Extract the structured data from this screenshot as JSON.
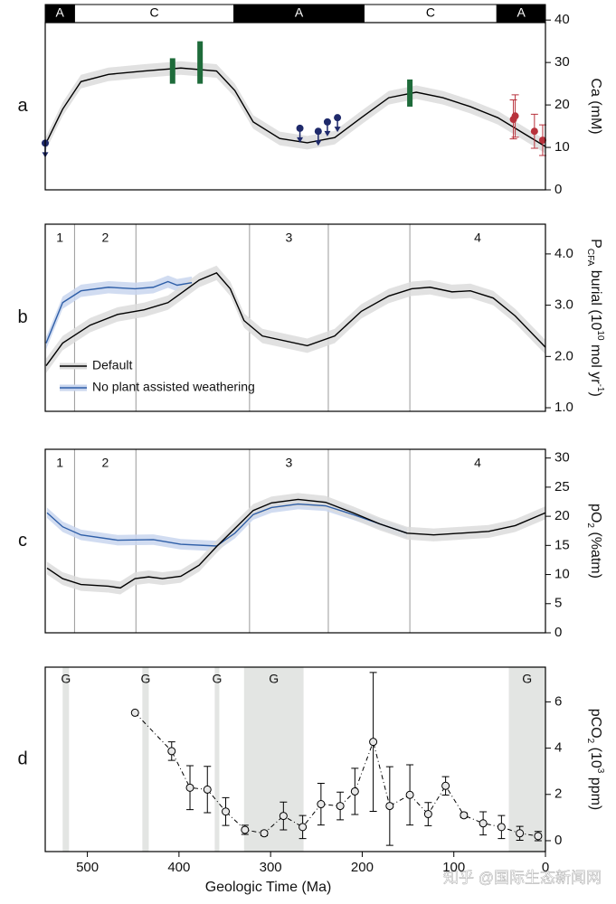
{
  "watermark": "知乎 @国际生态新闻网",
  "chart_data": [
    {
      "type": "line",
      "panel_label": "a",
      "xlim": [
        546,
        0
      ],
      "ylim": [
        0,
        39.4
      ],
      "yticks": [
        0,
        10,
        20,
        30,
        40
      ],
      "y_label": [
        {
          "text": "Ca (mM)"
        }
      ],
      "periods": [
        {
          "label": "A",
          "start": 546,
          "end": 514,
          "color": "#000000"
        },
        {
          "label": "C",
          "start": 514,
          "end": 340,
          "color": "#ffffff"
        },
        {
          "label": "A",
          "start": 340,
          "end": 198,
          "color": "#000000"
        },
        {
          "label": "C",
          "start": 198,
          "end": 53,
          "color": "#ffffff"
        },
        {
          "label": "A",
          "start": 53,
          "end": 0,
          "color": "#000000"
        }
      ],
      "series": [
        {
          "color": "#000000",
          "band_color": "#dcdcdc",
          "uncertainty": 1.6,
          "x": [
            546,
            527,
            507,
            477,
            438,
            398,
            359,
            339,
            319,
            290,
            260,
            230,
            201,
            171,
            141,
            112,
            82,
            52,
            23,
            0
          ],
          "values": [
            10.6,
            19,
            25.5,
            27.2,
            28,
            28.7,
            28,
            23.4,
            16,
            12.1,
            11.1,
            12.3,
            17,
            21.7,
            23,
            21.7,
            19.6,
            17,
            13.2,
            10.2
          ]
        }
      ],
      "ranges": {
        "color": "#1e6b3a",
        "x": [
          407,
          377,
          148
        ],
        "low": [
          25,
          25,
          19.6
        ],
        "high": [
          31,
          35,
          26
        ]
      },
      "upper_limits": {
        "color": "#1f2a6b",
        "x": [
          546,
          268,
          248,
          238,
          227
        ],
        "values": [
          11,
          14.5,
          13.8,
          16,
          17
        ]
      },
      "errpoints": {
        "color": "#b8323c",
        "x": [
          35,
          33,
          12,
          3
        ],
        "values": [
          16.6,
          17.4,
          13.8,
          11.7
        ],
        "errors": [
          4.6,
          5,
          4,
          3.6
        ]
      }
    },
    {
      "type": "line",
      "panel_label": "b",
      "xlim": [
        546,
        0
      ],
      "ylim": [
        0.93,
        4.58
      ],
      "yticks": [
        {
          "value": 1,
          "label": "1.0"
        },
        {
          "value": 2,
          "label": "2.0"
        },
        {
          "value": 3,
          "label": "3.0"
        },
        {
          "value": 4,
          "label": "4.0"
        }
      ],
      "y_label": [
        {
          "text": "P"
        },
        {
          "text": "CFA",
          "shift": "sub"
        },
        {
          "text": " burial (10"
        },
        {
          "text": "10",
          "shift": "super"
        },
        {
          "text": " mol yr"
        },
        {
          "text": "-1",
          "shift": "super"
        },
        {
          "text": ")"
        }
      ],
      "boundaries": [
        514,
        447,
        323,
        237,
        148
      ],
      "zones": [
        {
          "label": "1",
          "start": 546,
          "end": 514
        },
        {
          "label": "2",
          "start": 514,
          "end": 447
        },
        {
          "label": "3",
          "start": 323,
          "end": 237
        },
        {
          "label": "4",
          "start": 148,
          "end": 0
        }
      ],
      "legend": "lower left",
      "series": [
        {
          "name": "No plant assisted weathering",
          "color": "#2f5fa8",
          "band_color": "#c9d6ee",
          "uncertainty": 0.12,
          "x": [
            545,
            527,
            507,
            477,
            448,
            428,
            412,
            402,
            386
          ],
          "values": [
            2.26,
            3.05,
            3.28,
            3.35,
            3.32,
            3.35,
            3.46,
            3.39,
            3.44
          ]
        },
        {
          "name": "Default",
          "color": "#000000",
          "band_color": "#dcdcdc",
          "uncertainty": 0.14,
          "x": [
            545,
            527,
            497,
            467,
            438,
            412,
            398,
            378,
            359,
            344,
            329,
            309,
            260,
            230,
            201,
            171,
            146,
            126,
            102,
            82,
            57,
            33,
            0
          ],
          "values": [
            1.82,
            2.26,
            2.61,
            2.82,
            2.91,
            3.05,
            3.23,
            3.49,
            3.63,
            3.32,
            2.7,
            2.4,
            2.21,
            2.4,
            2.88,
            3.18,
            3.32,
            3.35,
            3.26,
            3.28,
            3.14,
            2.79,
            2.18
          ]
        }
      ]
    },
    {
      "type": "line",
      "panel_label": "c",
      "xlim": [
        546,
        0
      ],
      "ylim": [
        0,
        31.5
      ],
      "yticks": [
        0,
        5,
        10,
        15,
        20,
        25,
        30
      ],
      "y_label": [
        {
          "text": "pO"
        },
        {
          "text": "2",
          "shift": "sub"
        },
        {
          "text": " (%atm)"
        }
      ],
      "boundaries": [
        514,
        447,
        323,
        237,
        148
      ],
      "zones": [
        {
          "label": "1",
          "start": 546,
          "end": 514
        },
        {
          "label": "2",
          "start": 514,
          "end": 447
        },
        {
          "label": "3",
          "start": 323,
          "end": 237
        },
        {
          "label": "4",
          "start": 148,
          "end": 0
        }
      ],
      "series": [
        {
          "name": "No plant assisted weathering",
          "color": "#2f5fa8",
          "band_color": "#c9d6ee",
          "uncertainty": 0.9,
          "x": [
            544,
            527,
            507,
            467,
            428,
            398,
            359,
            339,
            319,
            299,
            270,
            240,
            210,
            181,
            151
          ],
          "values": [
            20.6,
            18.2,
            16.8,
            15.9,
            16,
            15.2,
            14.9,
            17.1,
            20.3,
            21.5,
            22.1,
            21.8,
            20.3,
            18.7,
            17.1
          ]
        },
        {
          "name": "Default",
          "color": "#000000",
          "band_color": "#dcdcdc",
          "uncertainty": 1.1,
          "x": [
            544,
            527,
            507,
            477,
            464,
            448,
            433,
            418,
            398,
            378,
            359,
            339,
            319,
            299,
            270,
            240,
            210,
            181,
            151,
            122,
            92,
            62,
            33,
            0
          ],
          "values": [
            11.1,
            9.3,
            8.3,
            8,
            7.7,
            9.3,
            9.6,
            9.3,
            9.7,
            11.6,
            14.8,
            17.9,
            21,
            22.3,
            22.9,
            22.4,
            20.6,
            18.7,
            17.1,
            16.8,
            17.1,
            17.4,
            18.4,
            20.6
          ]
        }
      ]
    },
    {
      "type": "scatter",
      "panel_label": "d",
      "xlim": [
        546,
        0
      ],
      "ylim": [
        -0.47,
        7.5
      ],
      "yticks": [
        0,
        2,
        4,
        6
      ],
      "xticks": [
        500,
        400,
        300,
        200,
        100,
        0
      ],
      "x_label": "Geologic Time (Ma)",
      "y_label": [
        {
          "text": "pCO"
        },
        {
          "text": "2",
          "shift": "sub"
        },
        {
          "text": " (10"
        },
        {
          "text": "3",
          "shift": "super"
        },
        {
          "text": " ppm)"
        }
      ],
      "glaciations": [
        {
          "label": "G",
          "start": 527,
          "end": 520
        },
        {
          "label": "G",
          "start": 440,
          "end": 433
        },
        {
          "label": "G",
          "start": 361,
          "end": 356
        },
        {
          "label": "G",
          "start": 329,
          "end": 264
        },
        {
          "label": "G",
          "start": 40,
          "end": 0
        }
      ],
      "glaciation_color": "#e3e5e3",
      "x": [
        448,
        408,
        388,
        369,
        349,
        328,
        307,
        286,
        265,
        245,
        224,
        208,
        188,
        170,
        148,
        128,
        109,
        89,
        68,
        48,
        28,
        8
      ],
      "values": [
        5.53,
        3.87,
        2.29,
        2.21,
        1.26,
        0.47,
        0.32,
        1.07,
        0.59,
        1.58,
        1.5,
        2.13,
        4.27,
        1.5,
        1.98,
        1.15,
        2.37,
        1.1,
        0.75,
        0.59,
        0.32,
        0.2
      ],
      "errors": [
        0,
        0.4,
        0.95,
        1,
        0.6,
        0.2,
        0.1,
        0.6,
        0.5,
        0.9,
        0.6,
        1,
        3,
        1.7,
        1.3,
        0.5,
        0.4,
        0.1,
        0.5,
        0.5,
        0.3,
        0.2
      ]
    }
  ]
}
